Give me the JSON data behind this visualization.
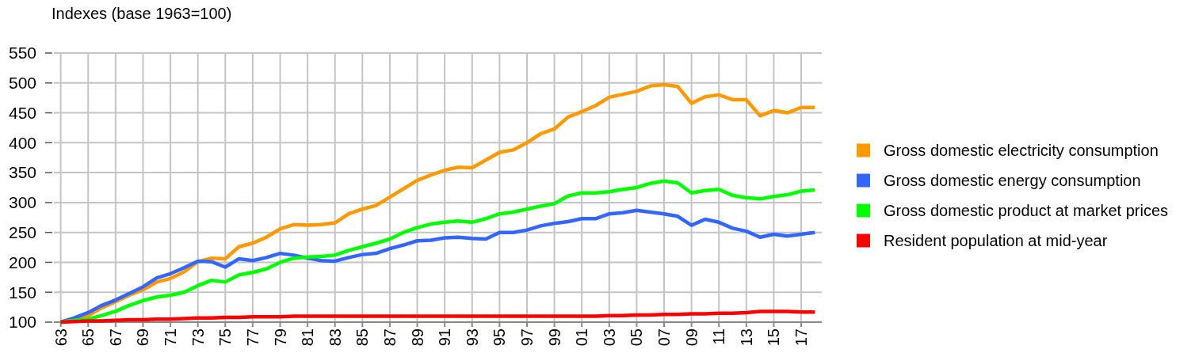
{
  "chart_data": {
    "type": "line",
    "title": "Indexes (base 1963=100)",
    "x": [
      1963,
      1964,
      1965,
      1966,
      1967,
      1968,
      1969,
      1970,
      1971,
      1972,
      1973,
      1974,
      1975,
      1976,
      1977,
      1978,
      1979,
      1980,
      1981,
      1982,
      1983,
      1984,
      1985,
      1986,
      1987,
      1988,
      1989,
      1990,
      1991,
      1992,
      1993,
      1994,
      1995,
      1996,
      1997,
      1998,
      1999,
      2000,
      2001,
      2002,
      2003,
      2004,
      2005,
      2006,
      2007,
      2008,
      2009,
      2010,
      2011,
      2012,
      2013,
      2014,
      2015,
      2016,
      2017,
      2018
    ],
    "series": [
      {
        "name": "Gross domestic electricity consumption",
        "color": "#ff9900",
        "values": [
          100,
          105,
          111,
          124,
          134,
          145,
          154,
          167,
          173,
          184,
          201,
          207,
          206,
          226,
          232,
          242,
          256,
          263,
          262,
          263,
          266,
          281,
          289,
          295,
          309,
          323,
          337,
          346,
          354,
          359,
          358,
          371,
          384,
          388,
          400,
          415,
          423,
          443,
          452,
          462,
          476,
          481,
          486,
          495,
          497,
          494,
          466,
          477,
          480,
          472,
          472,
          445,
          454,
          450,
          459,
          459
        ]
      },
      {
        "name": "Gross domestic energy consumption",
        "color": "#3366ff",
        "values": [
          100,
          107,
          116,
          128,
          137,
          148,
          159,
          174,
          181,
          191,
          202,
          201,
          192,
          206,
          203,
          208,
          215,
          212,
          207,
          203,
          202,
          208,
          213,
          215,
          223,
          229,
          236,
          237,
          241,
          242,
          240,
          239,
          250,
          250,
          254,
          261,
          265,
          268,
          273,
          273,
          281,
          283,
          287,
          284,
          281,
          277,
          262,
          272,
          267,
          257,
          252,
          242,
          247,
          244,
          247,
          250
        ]
      },
      {
        "name": "Gross domestic product at market prices",
        "color": "#00ff00",
        "values": [
          100,
          103,
          105,
          111,
          118,
          128,
          136,
          142,
          145,
          150,
          161,
          170,
          167,
          179,
          183,
          189,
          200,
          207,
          209,
          210,
          212,
          220,
          226,
          232,
          239,
          250,
          258,
          264,
          267,
          269,
          267,
          273,
          281,
          284,
          289,
          294,
          298,
          311,
          316,
          316,
          318,
          322,
          325,
          332,
          336,
          333,
          316,
          320,
          322,
          312,
          308,
          306,
          310,
          313,
          319,
          321
        ]
      },
      {
        "name": "Resident population at mid-year",
        "color": "#ff0000",
        "values": [
          100,
          101,
          102,
          102,
          103,
          104,
          104,
          105,
          105,
          106,
          107,
          107,
          108,
          108,
          109,
          109,
          109,
          110,
          110,
          110,
          110,
          110,
          110,
          110,
          110,
          110,
          110,
          110,
          110,
          110,
          110,
          110,
          110,
          110,
          110,
          110,
          110,
          110,
          110,
          110,
          111,
          111,
          112,
          112,
          113,
          113,
          114,
          114,
          115,
          115,
          116,
          118,
          118,
          118,
          117,
          117
        ]
      }
    ],
    "xlim": [
      1962.5,
      2018.5
    ],
    "xticks": [
      {
        "value": 1963,
        "label": "63"
      },
      {
        "value": 1965,
        "label": "65"
      },
      {
        "value": 1967,
        "label": "67"
      },
      {
        "value": 1969,
        "label": "69"
      },
      {
        "value": 1971,
        "label": "71"
      },
      {
        "value": 1973,
        "label": "73"
      },
      {
        "value": 1975,
        "label": "75"
      },
      {
        "value": 1977,
        "label": "77"
      },
      {
        "value": 1979,
        "label": "79"
      },
      {
        "value": 1981,
        "label": "81"
      },
      {
        "value": 1983,
        "label": "83"
      },
      {
        "value": 1985,
        "label": "85"
      },
      {
        "value": 1987,
        "label": "87"
      },
      {
        "value": 1989,
        "label": "89"
      },
      {
        "value": 1991,
        "label": "91"
      },
      {
        "value": 1993,
        "label": "93"
      },
      {
        "value": 1995,
        "label": "95"
      },
      {
        "value": 1997,
        "label": "97"
      },
      {
        "value": 1999,
        "label": "99"
      },
      {
        "value": 2001,
        "label": "01"
      },
      {
        "value": 2003,
        "label": "03"
      },
      {
        "value": 2005,
        "label": "05"
      },
      {
        "value": 2007,
        "label": "07"
      },
      {
        "value": 2009,
        "label": "09"
      },
      {
        "value": 2011,
        "label": "11"
      },
      {
        "value": 2013,
        "label": "13"
      },
      {
        "value": 2015,
        "label": "15"
      },
      {
        "value": 2017,
        "label": "17"
      }
    ],
    "ylim": [
      100,
      550
    ],
    "yticks": [
      100,
      150,
      200,
      250,
      300,
      350,
      400,
      450,
      500,
      550
    ],
    "grid": true,
    "legend": "right"
  }
}
